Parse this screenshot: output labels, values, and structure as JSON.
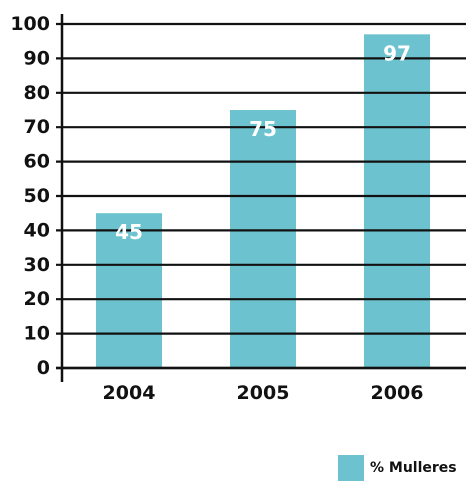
{
  "chart_data": {
    "type": "bar",
    "categories": [
      "2004",
      "2005",
      "2006"
    ],
    "series": [
      {
        "name": "% Mulleres",
        "values": [
          45,
          75,
          97
        ]
      }
    ],
    "data_labels": [
      "45",
      "75",
      "97"
    ],
    "y_ticks": [
      0,
      10,
      20,
      30,
      40,
      50,
      60,
      70,
      80,
      90,
      100
    ],
    "ylim": [
      0,
      100
    ],
    "grid": true,
    "legend_position": "bottom-right",
    "title": "",
    "xlabel": "",
    "ylabel": "",
    "colors": {
      "bar": "#6cc3cf",
      "grid": "#111111",
      "axis": "#111111"
    }
  }
}
